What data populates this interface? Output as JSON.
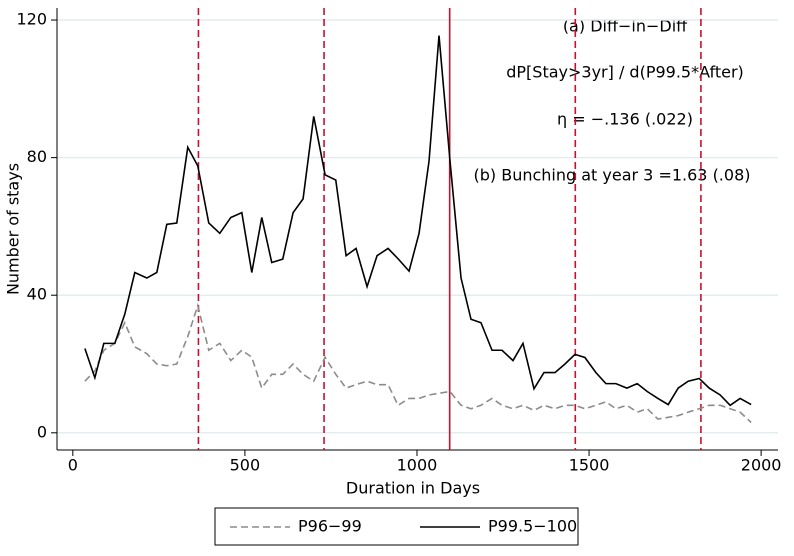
{
  "chart_data": {
    "type": "line",
    "xlabel": "Duration in Days",
    "ylabel": "Number of stays",
    "annotations": [
      "(a) Diff−in−Diff",
      "dP[Stay>3yr] / d(P99.5*After)",
      "η = −.136 (.022)",
      "(b) Bunching at year 3 =1.63 (.08)"
    ],
    "x": [
      35,
      64,
      90,
      122,
      151,
      180,
      215,
      244,
      273,
      302,
      334,
      363,
      395,
      427,
      459,
      491,
      520,
      549,
      578,
      610,
      640,
      669,
      700,
      733,
      764,
      794,
      823,
      855,
      884,
      916,
      945,
      977,
      1006,
      1035,
      1064,
      1096,
      1128,
      1157,
      1186,
      1218,
      1247,
      1279,
      1308,
      1340,
      1369,
      1401,
      1430,
      1459,
      1488,
      1520,
      1549,
      1578,
      1610,
      1640,
      1669,
      1700,
      1730,
      1759,
      1788,
      1820,
      1849,
      1881,
      1910,
      1939,
      1971
    ],
    "series": [
      {
        "name": "P96−99",
        "color": "#8c8c8c",
        "dash": true,
        "values": [
          15,
          18,
          24,
          26,
          32,
          25,
          23,
          20,
          19.5,
          20,
          28,
          37,
          24,
          26,
          21,
          24,
          22,
          13,
          17,
          17,
          20,
          17,
          15,
          22,
          17,
          13,
          14,
          15,
          14,
          14,
          8,
          10,
          10,
          11,
          11.5,
          12,
          8,
          7,
          8,
          10,
          8,
          7,
          8,
          6.5,
          8,
          7,
          8,
          8,
          7,
          8,
          9,
          7,
          8,
          6,
          7,
          4,
          4.5,
          5,
          6,
          7,
          8,
          8,
          7,
          6,
          3
        ]
      },
      {
        "name": "P99.5−100",
        "color": "#000000",
        "dash": false,
        "values": [
          24.5,
          16,
          26,
          26,
          34.5,
          46.6,
          45,
          46.6,
          60.6,
          61,
          83,
          77.6,
          61,
          58,
          62.6,
          64,
          46.6,
          62.6,
          49.5,
          50.5,
          64,
          68,
          92,
          75,
          73.5,
          51.5,
          53.6,
          42.5,
          51.5,
          53.6,
          50.6,
          47,
          58,
          79,
          115.5,
          79,
          45,
          33,
          32,
          24,
          24,
          21,
          26,
          12.8,
          17.5,
          17.5,
          20,
          22.8,
          21.9,
          17.5,
          14.3,
          14.3,
          13,
          14.3,
          12,
          10,
          8.2,
          13,
          15,
          15.8,
          13,
          11,
          8,
          10,
          8.2
        ]
      }
    ],
    "vlines": [
      {
        "value": 365,
        "dash": true
      },
      {
        "value": 730,
        "dash": true
      },
      {
        "value": 1095,
        "dash": false
      },
      {
        "value": 1460,
        "dash": true
      },
      {
        "value": 1825,
        "dash": true
      }
    ],
    "vline_color": "#c8102e",
    "xlim": [
      -46,
      2049
    ],
    "ylim": [
      -5,
      123.5
    ],
    "xticks": [
      0,
      500,
      1000,
      1500,
      2000
    ],
    "yticks": [
      0,
      40,
      80,
      120
    ],
    "grid": true,
    "legend": "bottom"
  }
}
